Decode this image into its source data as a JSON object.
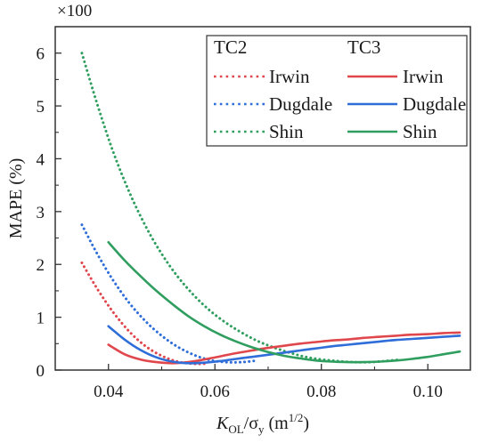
{
  "chart_data": {
    "type": "line",
    "multiplier_label": "×100",
    "ylabel": "MAPE (%)",
    "xlabel": {
      "main": "K",
      "sub1": "OL",
      "slash": "/σ",
      "sub2": "y",
      "unit": " (m",
      "sup": "1/2",
      "close": ")"
    },
    "xlim": [
      0.03,
      0.108
    ],
    "ylim": [
      0,
      6.5
    ],
    "x_ticks": [
      "0.04",
      "0.06",
      "0.08",
      "0.10"
    ],
    "y_ticks": [
      "0",
      "1",
      "2",
      "3",
      "4",
      "5",
      "6"
    ],
    "legend": {
      "position": "top-right",
      "group_titles": [
        "TC2",
        "TC3"
      ],
      "entries": [
        "Irwin",
        "Dugdale",
        "Shin"
      ]
    },
    "colors": {
      "Irwin": "#e0474c",
      "Dugdale": "#2f6ed8",
      "Shin": "#2f9e5f"
    },
    "series": [
      {
        "group": "TC2",
        "method": "Irwin",
        "style": "dotted",
        "x": [
          0.035,
          0.038,
          0.041,
          0.044,
          0.047,
          0.05,
          0.053,
          0.056,
          0.058
        ],
        "y": [
          2.03,
          1.52,
          1.08,
          0.72,
          0.45,
          0.27,
          0.16,
          0.12,
          0.12
        ]
      },
      {
        "group": "TC2",
        "method": "Dugdale",
        "style": "dotted",
        "x": [
          0.035,
          0.038,
          0.041,
          0.044,
          0.047,
          0.05,
          0.053,
          0.056,
          0.059,
          0.062,
          0.065,
          0.068
        ],
        "y": [
          2.75,
          2.18,
          1.68,
          1.26,
          0.92,
          0.65,
          0.44,
          0.29,
          0.19,
          0.15,
          0.15,
          0.18
        ]
      },
      {
        "group": "TC2",
        "method": "Shin",
        "style": "dotted",
        "x": [
          0.035,
          0.038,
          0.041,
          0.044,
          0.047,
          0.05,
          0.053,
          0.056,
          0.059,
          0.062,
          0.065,
          0.068,
          0.071,
          0.074,
          0.077,
          0.08,
          0.083,
          0.086,
          0.089,
          0.092,
          0.095
        ],
        "y": [
          6.0,
          5.0,
          4.1,
          3.35,
          2.72,
          2.2,
          1.77,
          1.42,
          1.13,
          0.9,
          0.71,
          0.55,
          0.43,
          0.33,
          0.25,
          0.2,
          0.17,
          0.15,
          0.15,
          0.17,
          0.2
        ]
      },
      {
        "group": "TC3",
        "method": "Irwin",
        "style": "solid",
        "x": [
          0.04,
          0.043,
          0.046,
          0.049,
          0.052,
          0.055,
          0.058,
          0.061,
          0.064,
          0.067,
          0.07,
          0.073,
          0.076,
          0.079,
          0.082,
          0.085,
          0.088,
          0.091,
          0.094,
          0.097,
          0.1,
          0.103,
          0.106
        ],
        "y": [
          0.48,
          0.3,
          0.2,
          0.15,
          0.13,
          0.15,
          0.2,
          0.26,
          0.32,
          0.37,
          0.42,
          0.46,
          0.5,
          0.53,
          0.56,
          0.58,
          0.61,
          0.63,
          0.65,
          0.67,
          0.68,
          0.7,
          0.71
        ]
      },
      {
        "group": "TC3",
        "method": "Dugdale",
        "style": "solid",
        "x": [
          0.04,
          0.043,
          0.046,
          0.049,
          0.052,
          0.055,
          0.058,
          0.061,
          0.064,
          0.067,
          0.07,
          0.073,
          0.076,
          0.079,
          0.082,
          0.085,
          0.088,
          0.091,
          0.094,
          0.097,
          0.1,
          0.103,
          0.106
        ],
        "y": [
          0.83,
          0.58,
          0.38,
          0.24,
          0.16,
          0.13,
          0.14,
          0.17,
          0.21,
          0.25,
          0.29,
          0.33,
          0.37,
          0.41,
          0.45,
          0.48,
          0.51,
          0.54,
          0.57,
          0.59,
          0.61,
          0.63,
          0.65
        ]
      },
      {
        "group": "TC3",
        "method": "Shin",
        "style": "solid",
        "x": [
          0.04,
          0.043,
          0.046,
          0.049,
          0.052,
          0.055,
          0.058,
          0.061,
          0.064,
          0.067,
          0.07,
          0.073,
          0.076,
          0.079,
          0.082,
          0.085,
          0.088,
          0.091,
          0.094,
          0.097,
          0.1,
          0.103,
          0.106
        ],
        "y": [
          2.42,
          2.08,
          1.78,
          1.5,
          1.25,
          1.02,
          0.83,
          0.67,
          0.54,
          0.43,
          0.34,
          0.27,
          0.22,
          0.18,
          0.16,
          0.15,
          0.15,
          0.16,
          0.18,
          0.21,
          0.25,
          0.3,
          0.35
        ]
      }
    ]
  }
}
